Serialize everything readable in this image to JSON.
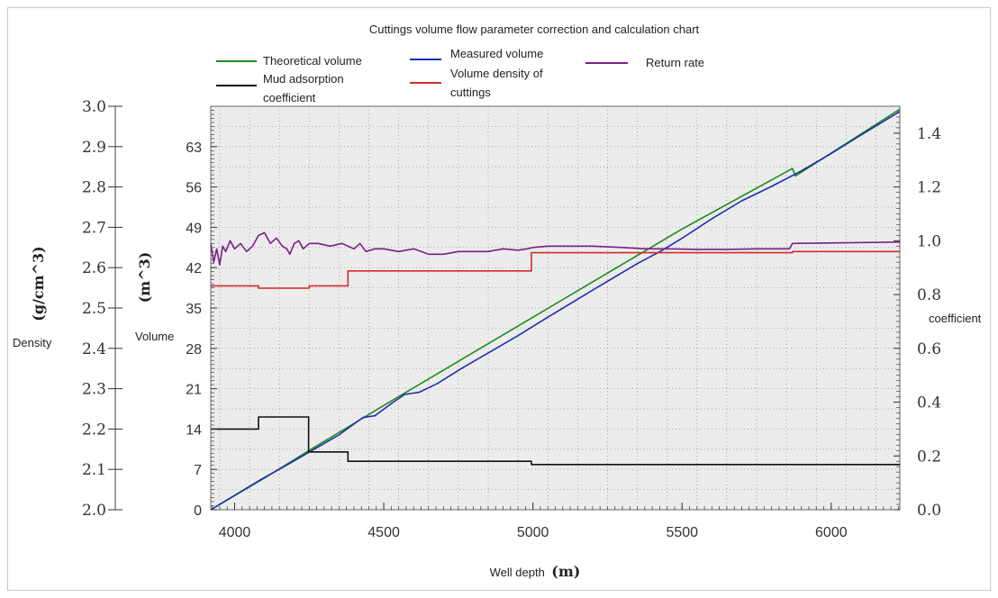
{
  "chart_data": {
    "type": "line",
    "title": "Cuttings volume flow parameter correction and calculation chart",
    "xlabel": "Well depth",
    "xunit": "(m)",
    "xlim": [
      3920,
      6230
    ],
    "xticks": [
      "4000",
      "4500",
      "5000",
      "5500",
      "6000"
    ],
    "axes": {
      "density": {
        "label": "Density",
        "unit": "(g/cm^3)",
        "ylim": [
          2.0,
          3.0
        ],
        "ticks": [
          "2.0",
          "2.1",
          "2.2",
          "2.3",
          "2.4",
          "2.5",
          "2.6",
          "2.7",
          "2.8",
          "2.9",
          "3.0"
        ]
      },
      "volume": {
        "label": "Volume",
        "unit": "(m^3)",
        "ylim": [
          0,
          70
        ],
        "ticks": [
          "0",
          "7",
          "14",
          "21",
          "28",
          "35",
          "42",
          "49",
          "56",
          "63"
        ]
      },
      "coefficient": {
        "label": "coefficient",
        "ylim": [
          0,
          1.5
        ],
        "ticks": [
          "0.0",
          "0.2",
          "0.4",
          "0.6",
          "0.8",
          "1.0",
          "1.2",
          "1.4"
        ]
      }
    },
    "grid": true,
    "legend_position": "top",
    "series": [
      {
        "name": "Theoretical volume",
        "axis": "volume",
        "color": "#1e8c1e",
        "points": [
          [
            3920,
            0
          ],
          [
            4100,
            5.5
          ],
          [
            4250,
            10.3
          ],
          [
            4500,
            18.1
          ],
          [
            5000,
            33.4
          ],
          [
            5500,
            48.7
          ],
          [
            5870,
            59.2
          ],
          [
            5880,
            57.9
          ],
          [
            6230,
            69.5
          ]
        ]
      },
      {
        "name": "Measured volume",
        "axis": "volume",
        "color": "#1f2fae",
        "points": [
          [
            3920,
            0
          ],
          [
            4080,
            5.0
          ],
          [
            4180,
            7.9
          ],
          [
            4250,
            10.0
          ],
          [
            4350,
            13.0
          ],
          [
            4430,
            16.0
          ],
          [
            4470,
            16.3
          ],
          [
            4530,
            18.6
          ],
          [
            4570,
            20.0
          ],
          [
            4620,
            20.4
          ],
          [
            4680,
            21.9
          ],
          [
            4760,
            24.5
          ],
          [
            4850,
            27.2
          ],
          [
            4950,
            30.2
          ],
          [
            5050,
            33.4
          ],
          [
            5200,
            38.1
          ],
          [
            5350,
            42.7
          ],
          [
            5430,
            44.9
          ],
          [
            5500,
            47.1
          ],
          [
            5600,
            50.5
          ],
          [
            5700,
            53.6
          ],
          [
            5800,
            56.1
          ],
          [
            5900,
            58.8
          ],
          [
            6000,
            61.8
          ],
          [
            6100,
            65.0
          ],
          [
            6230,
            69.1
          ]
        ]
      },
      {
        "name": "Mud adsorption coefficient",
        "axis": "coefficient",
        "color": "#111111",
        "step": true,
        "points": [
          [
            3920,
            0.3
          ],
          [
            4080,
            0.3
          ],
          [
            4080,
            0.345
          ],
          [
            4248,
            0.345
          ],
          [
            4248,
            0.215
          ],
          [
            4380,
            0.215
          ],
          [
            4380,
            0.18
          ],
          [
            4995,
            0.18
          ],
          [
            4995,
            0.168
          ],
          [
            6230,
            0.168
          ]
        ]
      },
      {
        "name": "Volume density of cuttings",
        "axis": "density",
        "color": "#d42a2a",
        "step": true,
        "points": [
          [
            3920,
            2.555
          ],
          [
            4080,
            2.555
          ],
          [
            4080,
            2.549
          ],
          [
            4250,
            2.549
          ],
          [
            4250,
            2.555
          ],
          [
            4380,
            2.555
          ],
          [
            4380,
            2.592
          ],
          [
            4995,
            2.592
          ],
          [
            4995,
            2.637
          ],
          [
            5870,
            2.637
          ],
          [
            5870,
            2.64
          ],
          [
            6230,
            2.64
          ]
        ]
      },
      {
        "name": "Return rate",
        "axis": "coefficient",
        "color": "#7b1f86",
        "points": [
          [
            3920,
            0.99
          ],
          [
            3930,
            0.92
          ],
          [
            3940,
            0.97
          ],
          [
            3950,
            0.91
          ],
          [
            3960,
            0.98
          ],
          [
            3970,
            0.96
          ],
          [
            3985,
            1.0
          ],
          [
            4000,
            0.97
          ],
          [
            4020,
            0.99
          ],
          [
            4040,
            0.96
          ],
          [
            4060,
            0.98
          ],
          [
            4080,
            1.02
          ],
          [
            4100,
            1.03
          ],
          [
            4120,
            0.99
          ],
          [
            4140,
            1.01
          ],
          [
            4160,
            0.98
          ],
          [
            4175,
            0.97
          ],
          [
            4185,
            0.95
          ],
          [
            4200,
            0.99
          ],
          [
            4215,
            1.0
          ],
          [
            4230,
            0.97
          ],
          [
            4250,
            0.99
          ],
          [
            4280,
            0.99
          ],
          [
            4320,
            0.98
          ],
          [
            4360,
            0.99
          ],
          [
            4400,
            0.97
          ],
          [
            4420,
            0.99
          ],
          [
            4440,
            0.96
          ],
          [
            4470,
            0.97
          ],
          [
            4500,
            0.97
          ],
          [
            4550,
            0.96
          ],
          [
            4600,
            0.97
          ],
          [
            4650,
            0.95
          ],
          [
            4700,
            0.95
          ],
          [
            4750,
            0.96
          ],
          [
            4800,
            0.96
          ],
          [
            4850,
            0.96
          ],
          [
            4900,
            0.97
          ],
          [
            4950,
            0.965
          ],
          [
            4980,
            0.97
          ],
          [
            5000,
            0.975
          ],
          [
            5050,
            0.98
          ],
          [
            5100,
            0.98
          ],
          [
            5200,
            0.98
          ],
          [
            5300,
            0.975
          ],
          [
            5380,
            0.97
          ],
          [
            5450,
            0.97
          ],
          [
            5550,
            0.968
          ],
          [
            5650,
            0.968
          ],
          [
            5750,
            0.97
          ],
          [
            5860,
            0.97
          ],
          [
            5870,
            0.99
          ],
          [
            6230,
            0.995
          ]
        ]
      }
    ]
  }
}
